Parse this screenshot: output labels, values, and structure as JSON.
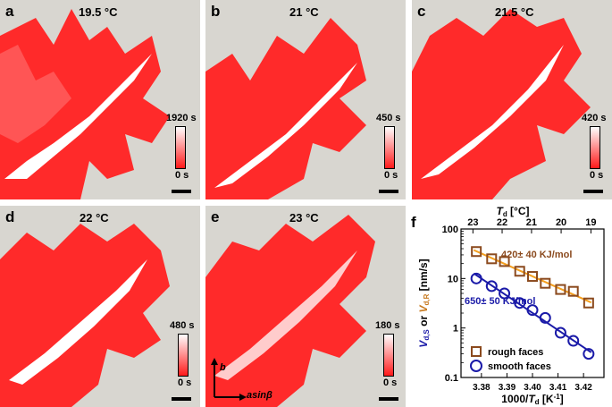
{
  "panels": [
    {
      "label": "a",
      "temp": "19.5 °C",
      "cbar_max": "1920 s",
      "cbar_min": "0 s"
    },
    {
      "label": "b",
      "temp": "21 °C",
      "cbar_max": "450 s",
      "cbar_min": "0 s"
    },
    {
      "label": "c",
      "temp": "21.5 °C",
      "cbar_max": "420 s",
      "cbar_min": "0 s"
    },
    {
      "label": "d",
      "temp": "22 °C",
      "cbar_max": "480 s",
      "cbar_min": "0 s"
    },
    {
      "label": "e",
      "temp": "23 °C",
      "cbar_max": "180 s",
      "cbar_min": "0 s",
      "axis_b": "b",
      "axis_a": "asinβ"
    }
  ],
  "chart_data": {
    "type": "scatter",
    "label": "f",
    "top_axis_label": "Td [°C]",
    "top_ticks": [
      23,
      22,
      21,
      20,
      19
    ],
    "xlabel": "1000/Td [K-1]",
    "ylabel": "Vd,S or Vd,R [nm/s]",
    "xlim": [
      3.372,
      3.428
    ],
    "ylim": [
      0.1,
      100
    ],
    "log_y": true,
    "x_ticks": [
      3.38,
      3.39,
      3.4,
      3.41,
      3.42
    ],
    "y_ticks": [
      0.1,
      1,
      10,
      100
    ],
    "series": [
      {
        "name": "rough faces",
        "marker": "square",
        "color": "#8b4a1e",
        "line_color": "#f5a020",
        "x": [
          3.378,
          3.384,
          3.389,
          3.395,
          3.4,
          3.405,
          3.411,
          3.416,
          3.422
        ],
        "y": [
          35,
          25,
          22,
          14,
          11,
          8,
          6,
          5.5,
          3.2
        ],
        "annotation": "420± 40 KJ/mol"
      },
      {
        "name": "smooth faces",
        "marker": "circle",
        "color": "#1a1aa8",
        "line_color": "#1a1aa8",
        "x": [
          3.378,
          3.384,
          3.389,
          3.395,
          3.4,
          3.405,
          3.411,
          3.416,
          3.422
        ],
        "y": [
          10,
          7,
          5,
          3.2,
          2.3,
          1.6,
          0.8,
          0.55,
          0.3
        ],
        "annotation": "650± 50 KJ/mol"
      }
    ]
  }
}
